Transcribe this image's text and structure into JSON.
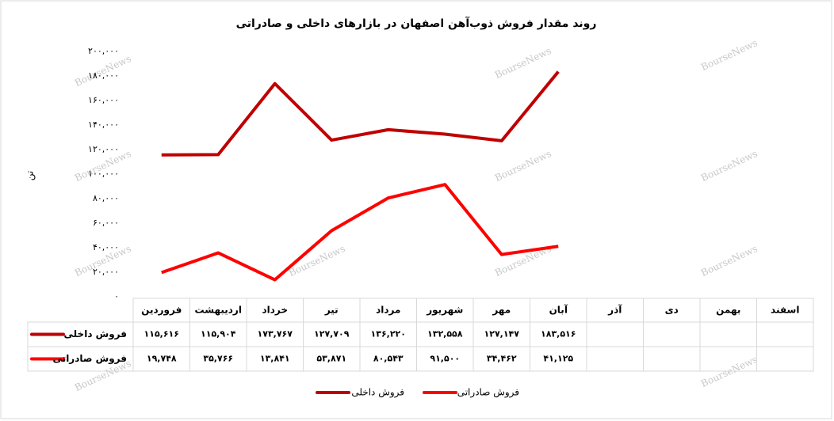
{
  "chart_data": {
    "type": "line",
    "title": "روند مقدار فروش  ذوب‌آهن اصفهان در بازارهای داخلی و صادراتی",
    "y_label": "تن",
    "watermark": "BourseNews",
    "categories": [
      "فروردین",
      "اردیبهشت",
      "خرداد",
      "تیر",
      "مرداد",
      "شهریور",
      "مهر",
      "آبان",
      "آذر",
      "دی",
      "بهمن",
      "اسفند"
    ],
    "series": [
      {
        "name": "فروش داخلی",
        "color": "#c00000",
        "values": [
          115616,
          115904,
          173767,
          127709,
          136220,
          132558,
          127147,
          183516,
          null,
          null,
          null,
          null
        ],
        "value_labels": [
          "۱۱۵,۶۱۶",
          "۱۱۵,۹۰۴",
          "۱۷۳,۷۶۷",
          "۱۲۷,۷۰۹",
          "۱۳۶,۲۲۰",
          "۱۳۲,۵۵۸",
          "۱۲۷,۱۴۷",
          "۱۸۳,۵۱۶",
          null,
          null,
          null,
          null
        ]
      },
      {
        "name": "فروش صادراتی",
        "color": "#ff0000",
        "values": [
          19748,
          35766,
          13841,
          53871,
          80543,
          91500,
          34462,
          41125,
          null,
          null,
          null,
          null
        ],
        "value_labels": [
          "۱۹,۷۴۸",
          "۳۵,۷۶۶",
          "۱۳,۸۴۱",
          "۵۳,۸۷۱",
          "۸۰,۵۴۳",
          "۹۱,۵۰۰",
          "۳۴,۴۶۲",
          "۴۱,۱۲۵",
          null,
          null,
          null,
          null
        ]
      }
    ],
    "ylim": [
      0,
      200000
    ],
    "yticks": [
      {
        "value": 0,
        "label": "۰"
      },
      {
        "value": 20000,
        "label": "۲۰,۰۰۰"
      },
      {
        "value": 40000,
        "label": "۴۰,۰۰۰"
      },
      {
        "value": 60000,
        "label": "۶۰,۰۰۰"
      },
      {
        "value": 80000,
        "label": "۸۰,۰۰۰"
      },
      {
        "value": 100000,
        "label": "۱۰۰,۰۰۰"
      },
      {
        "value": 120000,
        "label": "۱۲۰,۰۰۰"
      },
      {
        "value": 140000,
        "label": "۱۴۰,۰۰۰"
      },
      {
        "value": 160000,
        "label": "۱۶۰,۰۰۰"
      },
      {
        "value": 180000,
        "label": "۱۸۰,۰۰۰"
      },
      {
        "value": 200000,
        "label": "۲۰۰,۰۰۰"
      }
    ],
    "grid": false
  }
}
